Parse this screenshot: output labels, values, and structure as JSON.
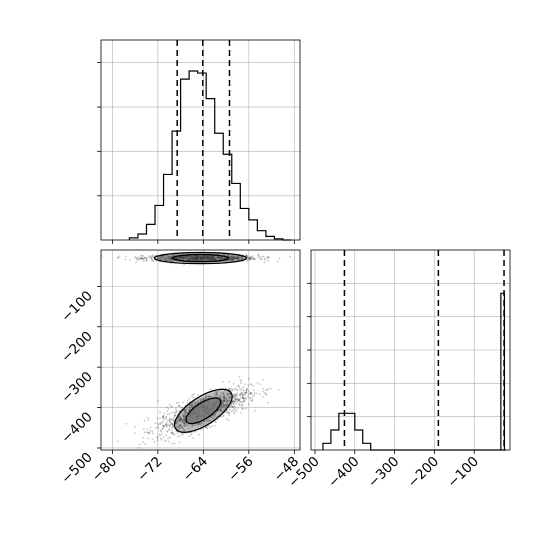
{
  "chart_data": [
    {
      "type": "histogram",
      "panel": "top-left",
      "variable_index": 0,
      "xlim": [
        -82,
        -47
      ],
      "ylim": [
        0,
        0.0665
      ],
      "x_ticks": [
        -80,
        -72,
        -64,
        -56,
        -48
      ],
      "bin_edges": [
        -77,
        -75.5,
        -74,
        -72.5,
        -71,
        -69.5,
        -68,
        -66.5,
        -65,
        -63.5,
        -62,
        -60.5,
        -59,
        -57.5,
        -56,
        -54.5,
        -53,
        -51.5,
        -50,
        -48.5
      ],
      "density": [
        0.0007,
        0.002,
        0.0052,
        0.0115,
        0.0218,
        0.0362,
        0.0535,
        0.0562,
        0.0555,
        0.047,
        0.0355,
        0.0285,
        0.0188,
        0.0105,
        0.0067,
        0.0031,
        0.0012,
        0.0004,
        0.0
      ],
      "quantile_lines": [
        -68.6,
        -64.1,
        -59.4
      ],
      "grid": true
    },
    {
      "type": "scatter",
      "panel": "bottom-left",
      "xlim": [
        -82,
        -47
      ],
      "ylim": [
        -505,
        -10
      ],
      "x_ticks": [
        -80,
        -72,
        -64,
        -56,
        -48
      ],
      "y_ticks": [
        -100,
        -200,
        -300,
        -400,
        -500
      ],
      "clusters": [
        {
          "x_mean": -64.5,
          "y_mean": -30,
          "x_sd": 5.0,
          "y_sd": 4,
          "corr": 0.0,
          "n": 900
        },
        {
          "x_mean": -64.0,
          "y_mean": -408,
          "x_sd": 4.0,
          "y_sd": 28,
          "corr": 0.75,
          "n": 1300
        }
      ],
      "contour_levels": 2,
      "grid": true
    },
    {
      "type": "histogram",
      "panel": "bottom-right",
      "variable_index": 1,
      "xlim": [
        -510,
        -10
      ],
      "ylim": [
        0,
        0.3
      ],
      "x_ticks": [
        -500,
        -400,
        -300,
        -200,
        -100
      ],
      "bin_edges": [
        -480,
        -460,
        -440,
        -420,
        -400,
        -380,
        -360,
        -340,
        -320,
        -300,
        -280,
        -260,
        -240,
        -220,
        -200,
        -180,
        -160,
        -140,
        -120,
        -100,
        -80,
        -60,
        -40,
        -20
      ],
      "density": [
        0.01,
        0.03,
        0.055,
        0.055,
        0.03,
        0.01,
        0,
        0,
        0,
        0,
        0,
        0,
        0,
        0,
        0,
        0,
        0,
        0,
        0,
        0,
        0,
        0,
        0
      ],
      "spike": {
        "x_start": -33,
        "x_end": -24,
        "height": 0.235
      },
      "quantile_lines": [
        -426,
        -190,
        -25
      ],
      "grid": true
    }
  ]
}
